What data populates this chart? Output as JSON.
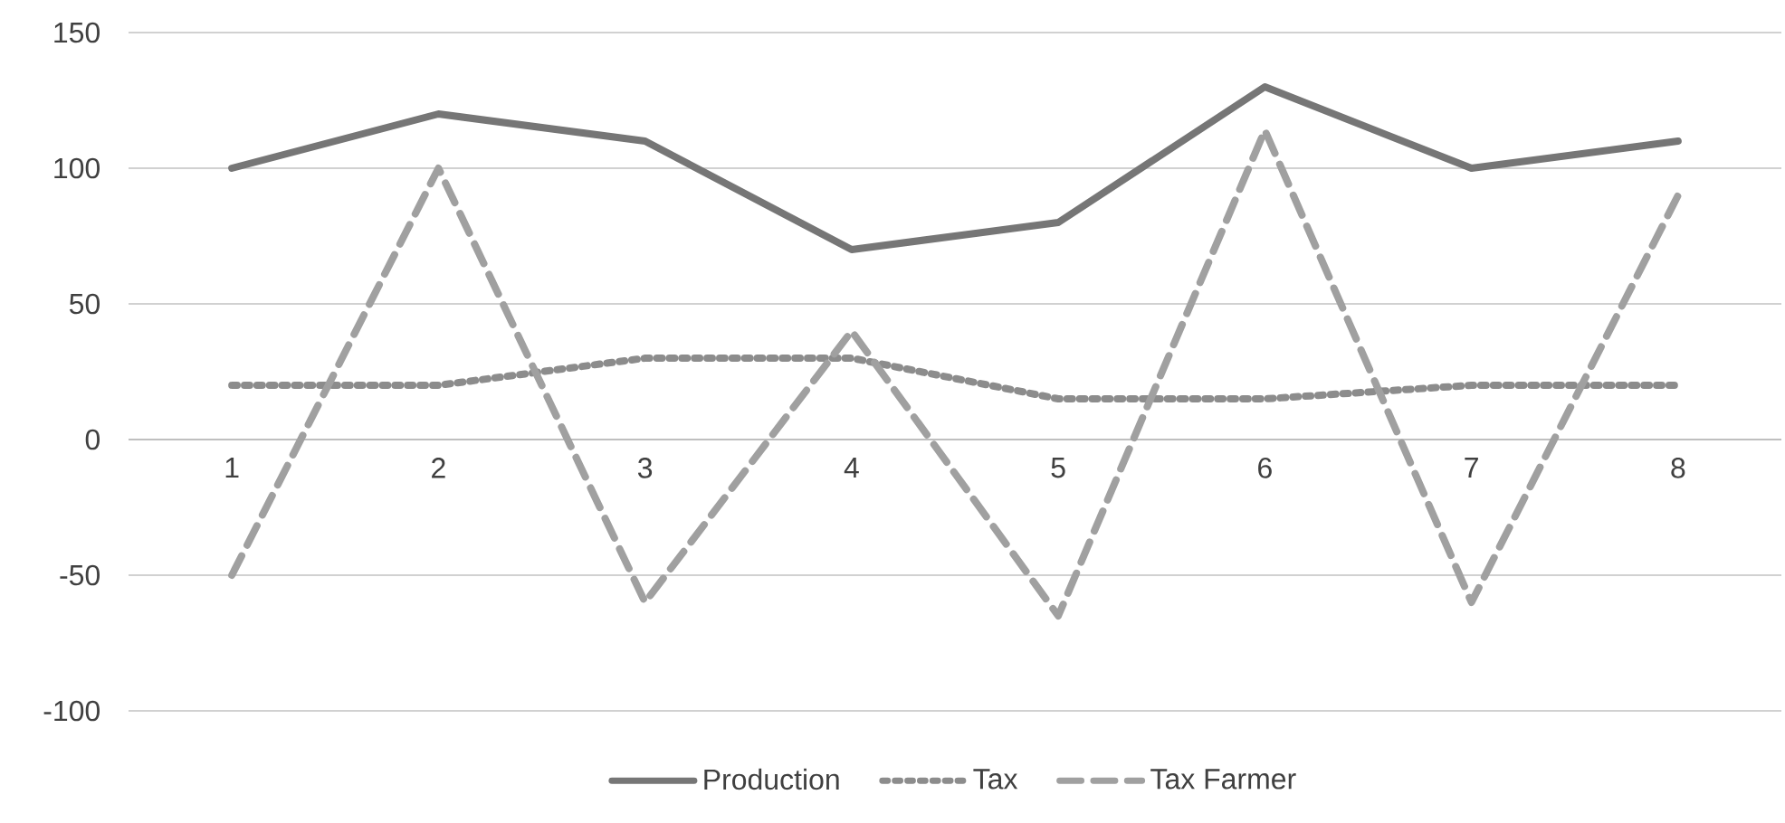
{
  "chart_data": {
    "type": "line",
    "categories": [
      "1",
      "2",
      "3",
      "4",
      "5",
      "6",
      "7",
      "8"
    ],
    "series": [
      {
        "name": "Production",
        "color": "#767676",
        "line_style": "solid",
        "values": [
          100,
          120,
          110,
          70,
          80,
          130,
          100,
          110
        ]
      },
      {
        "name": "Tax",
        "color": "#8c8c8c",
        "line_style": "dotted",
        "values": [
          20,
          20,
          30,
          30,
          15,
          15,
          20,
          20
        ]
      },
      {
        "name": "Tax Farmer",
        "color": "#a0a0a0",
        "line_style": "dashed",
        "values": [
          -50,
          100,
          -60,
          40,
          -65,
          114,
          -60,
          90
        ]
      }
    ],
    "ylim": [
      -100,
      150
    ],
    "yticks": [
      -100,
      -50,
      0,
      50,
      100,
      150
    ],
    "grid": "y",
    "legend": "bottom"
  }
}
